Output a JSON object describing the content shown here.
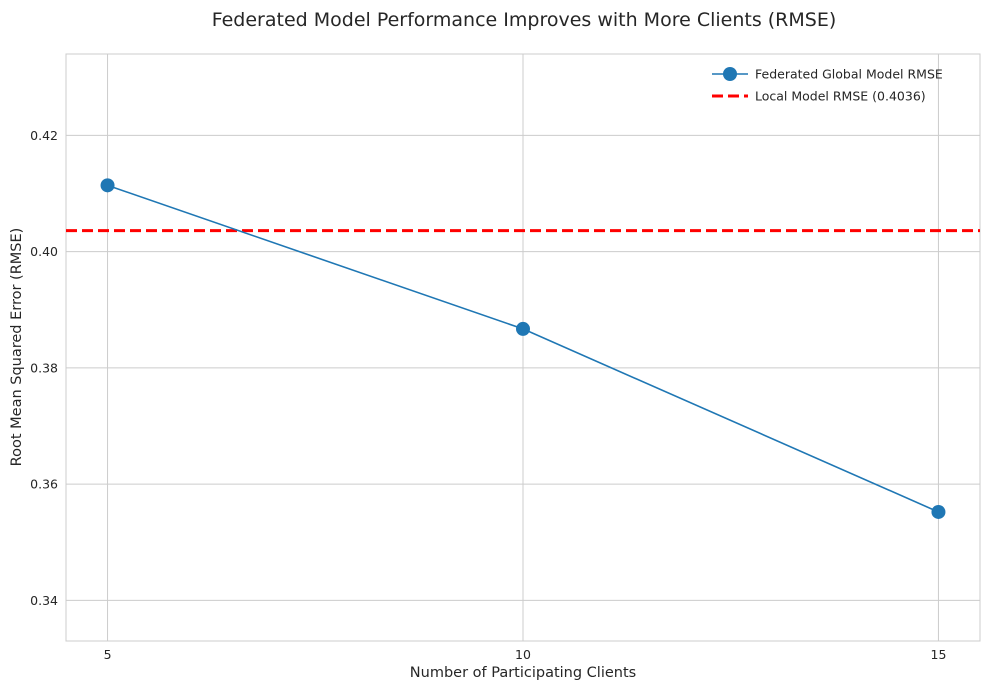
{
  "chart_data": {
    "type": "line",
    "title": "Federated Model Performance Improves with More Clients (RMSE)",
    "xlabel": "Number of Participating Clients",
    "ylabel": "Root Mean Squared Error (RMSE)",
    "x": [
      5,
      10,
      15
    ],
    "xticks": [
      5,
      10,
      15
    ],
    "yticks": [
      0.34,
      0.36,
      0.38,
      0.4,
      0.42
    ],
    "ytick_labels": [
      "0.34",
      "0.36",
      "0.38",
      "0.40",
      "0.42"
    ],
    "xlim": [
      4.5,
      15.5
    ],
    "ylim": [
      0.333,
      0.434
    ],
    "grid": true,
    "legend_position": "top-right",
    "series": [
      {
        "name": "Federated Global Model RMSE",
        "values": [
          0.4114,
          0.3867,
          0.3552
        ],
        "color": "#1f77b4",
        "marker": "circle"
      }
    ],
    "reference_lines": [
      {
        "name": "Local Model RMSE (0.4036)",
        "value": 0.4036,
        "color": "#ff0000",
        "style": "dashed"
      }
    ]
  }
}
